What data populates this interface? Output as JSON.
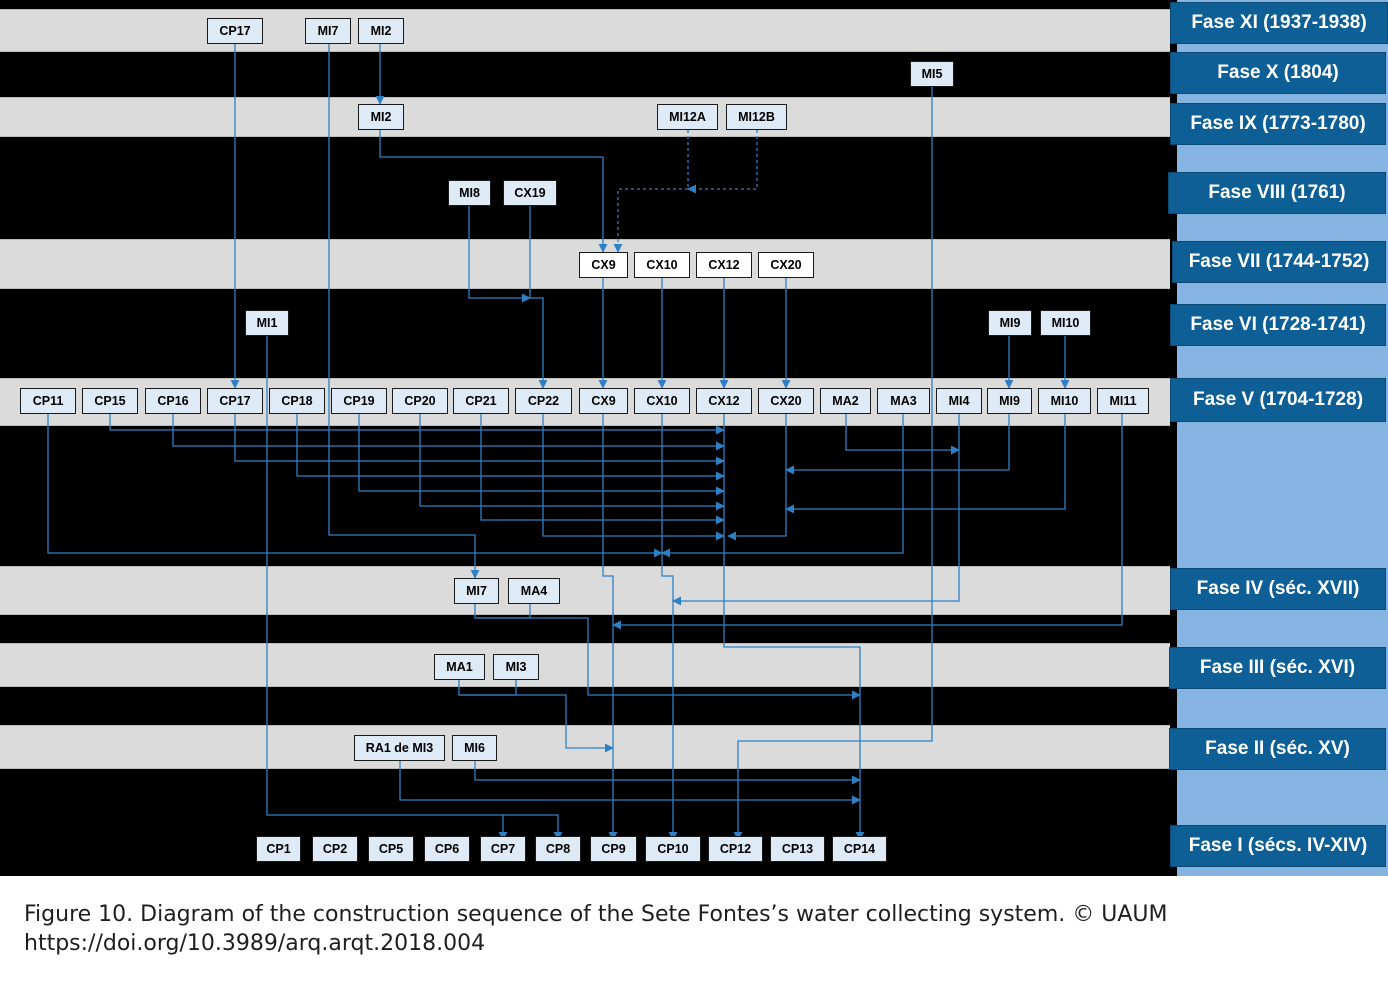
{
  "phases": [
    {
      "id": "XI",
      "label": "Fase XI (1937-1938)"
    },
    {
      "id": "X",
      "label": "Fase X (1804)"
    },
    {
      "id": "IX",
      "label": "Fase IX (1773-1780)"
    },
    {
      "id": "VIII",
      "label": "Fase VIII (1761)"
    },
    {
      "id": "VII",
      "label": "Fase VII (1744-1752)"
    },
    {
      "id": "VI",
      "label": "Fase VI (1728-1741)"
    },
    {
      "id": "V",
      "label": "Fase V (1704-1728)"
    },
    {
      "id": "IV",
      "label": "Fase IV (séc. XVII)"
    },
    {
      "id": "III",
      "label": "Fase III (séc. XVI)"
    },
    {
      "id": "II",
      "label": "Fase II (séc. XV)"
    },
    {
      "id": "I",
      "label": "Fase I (sécs. IV-XIV)"
    }
  ],
  "nodes": {
    "xi_cp17": "CP17",
    "xi_mi7": "MI7",
    "xi_mi2": "MI2",
    "x_mi5": "MI5",
    "ix_mi2": "MI2",
    "ix_mi12a": "MI12A",
    "ix_mi12b": "MI12B",
    "viii_mi8": "MI8",
    "viii_cx19": "CX19",
    "vii_cx9": "CX9",
    "vii_cx10": "CX10",
    "vii_cx12": "CX12",
    "vii_cx20": "CX20",
    "vi_mi1": "MI1",
    "vi_mi9": "MI9",
    "vi_mi10": "MI10",
    "v_cp11": "CP11",
    "v_cp15": "CP15",
    "v_cp16": "CP16",
    "v_cp17": "CP17",
    "v_cp18": "CP18",
    "v_cp19": "CP19",
    "v_cp20": "CP20",
    "v_cp21": "CP21",
    "v_cp22": "CP22",
    "v_cx9": "CX9",
    "v_cx10": "CX10",
    "v_cx12": "CX12",
    "v_cx20": "CX20",
    "v_ma2": "MA2",
    "v_ma3": "MA3",
    "v_mi4": "MI4",
    "v_mi9": "MI9",
    "v_mi10": "MI10",
    "v_mi11": "MI11",
    "iv_mi7": "MI7",
    "iv_ma4": "MA4",
    "iii_ma1": "MA1",
    "iii_mi3": "MI3",
    "ii_ra1": "RA1 de MI3",
    "ii_mi6": "MI6",
    "i_cp1": "CP1",
    "i_cp2": "CP2",
    "i_cp5": "CP5",
    "i_cp6": "CP6",
    "i_cp7": "CP7",
    "i_cp8": "CP8",
    "i_cp9": "CP9",
    "i_cp10": "CP10",
    "i_cp12": "CP12",
    "i_cp13": "CP13",
    "i_cp14": "CP14"
  },
  "colors": {
    "band_light": "#dbdbdb",
    "band_dark": "#000000",
    "side_column": "#85b4e2",
    "phase_label": "#0d5f95",
    "node_fill": "#deeaf6",
    "arrow": "#2f7fc4"
  },
  "caption": {
    "line1": "Figure 10. Diagram of the construction sequence of the Sete Fontes’s water collecting system. © UAUM",
    "line2": "https://doi.org/10.3989/arq.arqt.2018.004"
  }
}
